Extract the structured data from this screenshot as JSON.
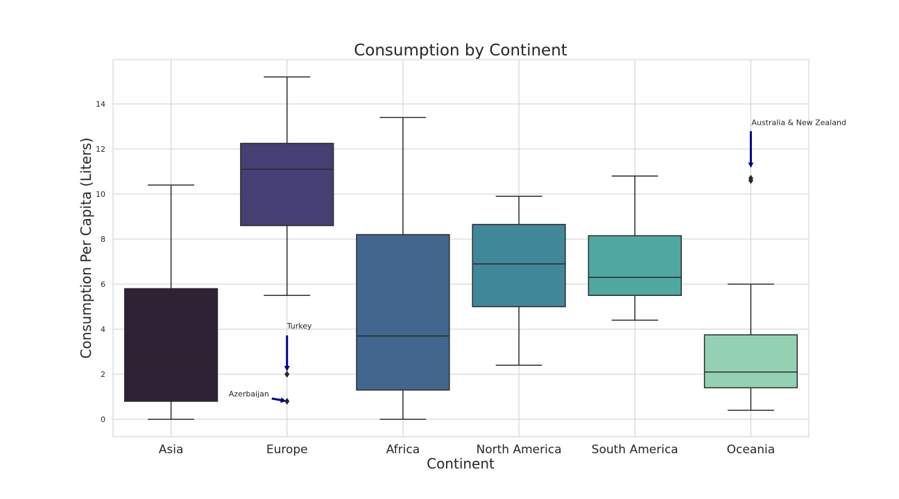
{
  "chart_data": {
    "type": "box",
    "title": "Consumption by Continent",
    "xlabel": "Continent",
    "ylabel": "Consumption Per Capita (Liters)",
    "ylim": [
      -0.78,
      15.95
    ],
    "yticks": [
      0,
      2,
      4,
      6,
      8,
      10,
      12,
      14
    ],
    "grid": true,
    "categories": [
      "Asia",
      "Europe",
      "Africa",
      "North America",
      "South America",
      "Oceania"
    ],
    "boxes": [
      {
        "category": "Asia",
        "whisker_low": 0.0,
        "q1": 0.8,
        "median": 2.4,
        "q3": 5.8,
        "whisker_high": 10.4,
        "outliers": [],
        "color": "#2e2234"
      },
      {
        "category": "Europe",
        "whisker_low": 5.5,
        "q1": 8.6,
        "median": 11.1,
        "q3": 12.25,
        "whisker_high": 15.2,
        "outliers": [
          2.0,
          0.8
        ],
        "color": "#453f73"
      },
      {
        "category": "Africa",
        "whisker_low": 0.0,
        "q1": 1.3,
        "median": 3.7,
        "q3": 8.2,
        "whisker_high": 13.4,
        "outliers": [],
        "color": "#43668f"
      },
      {
        "category": "North America",
        "whisker_low": 2.4,
        "q1": 5.0,
        "median": 6.9,
        "q3": 8.65,
        "whisker_high": 9.9,
        "outliers": [],
        "color": "#41879a"
      },
      {
        "category": "South America",
        "whisker_low": 4.4,
        "q1": 5.5,
        "median": 6.3,
        "q3": 8.15,
        "whisker_high": 10.8,
        "outliers": [],
        "color": "#4fa8a2"
      },
      {
        "category": "Oceania",
        "whisker_low": 0.4,
        "q1": 1.4,
        "median": 2.1,
        "q3": 3.75,
        "whisker_high": 6.0,
        "outliers": [
          10.7,
          10.6
        ],
        "color": "#94d1b3"
      }
    ],
    "annotations": [
      {
        "text": "Turkey",
        "category": "Europe",
        "point": 2.0,
        "arrow_color": "#00008b"
      },
      {
        "text": "Azerbaijan",
        "category": "Europe",
        "point": 0.8,
        "arrow_color": "#00008b"
      },
      {
        "text": "Australia & New Zealand",
        "category": "Oceania",
        "point": 10.7,
        "arrow_color": "#00008b"
      }
    ]
  }
}
